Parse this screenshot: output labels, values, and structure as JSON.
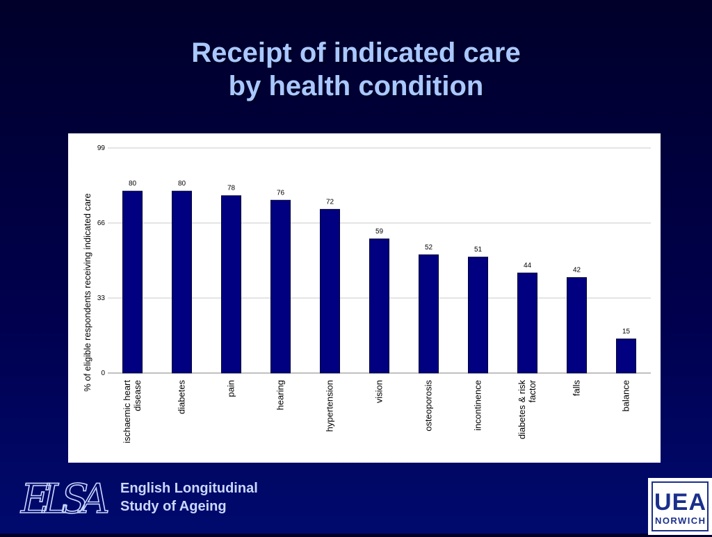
{
  "slide": {
    "title_line1": "Receipt of indicated care",
    "title_line2": "by health condition"
  },
  "chart_data": {
    "type": "bar",
    "categories": [
      [
        "ischaemic heart",
        "disease"
      ],
      [
        "diabetes"
      ],
      [
        "pain"
      ],
      [
        "hearing"
      ],
      [
        "hypertension"
      ],
      [
        "vision"
      ],
      [
        "osteoporosis"
      ],
      [
        "incontinence"
      ],
      [
        "diabetes & risk",
        "factor"
      ],
      [
        "falls"
      ],
      [
        "balance"
      ]
    ],
    "values": [
      80,
      80,
      78,
      76,
      72,
      59,
      52,
      51,
      44,
      42,
      15
    ],
    "ylabel": "% of eligible respondents receiving  indicated care",
    "ylim": [
      0,
      99
    ],
    "yticks": [
      0,
      33,
      66,
      99
    ],
    "grid": true,
    "bar_color": "#000080",
    "bar_outline": "#000033"
  },
  "footer": {
    "elsa_logo_text": "ELSA",
    "elsa_line1": "English Longitudinal",
    "elsa_line2": "Study of Ageing",
    "uea_logo_line1": "UEA",
    "uea_logo_line2": "NORWICH"
  },
  "colors": {
    "title": "#a9c8ff",
    "background_top": "#00002a",
    "background_bottom": "#000a6e",
    "uea_blue": "#1a2f8c"
  }
}
